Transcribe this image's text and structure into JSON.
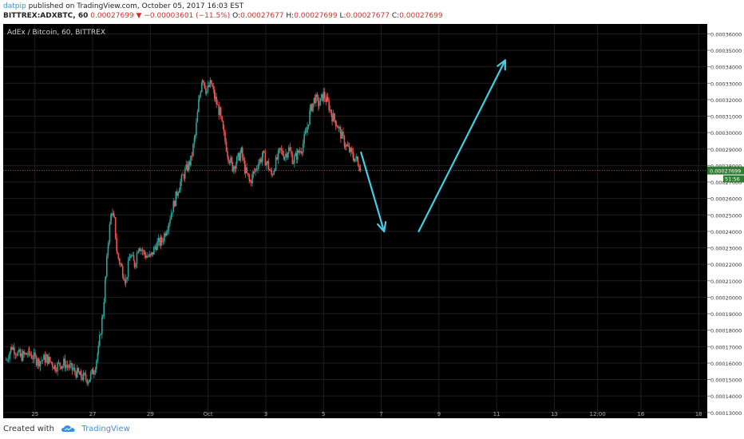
{
  "header": {
    "author": "datpip",
    "published": "published on TradingView.com, October 05, 2017 16:03 EST"
  },
  "quote": {
    "symbol": "BITTREX:ADXBTC, 60",
    "last": "0.00027699",
    "arrow": "▼",
    "change": "−0.00003601 (−11.5%)",
    "o_label": "O:",
    "o_value": "0.00027677",
    "h_label": "H:",
    "h_value": "0.00027699",
    "l_label": "L:",
    "l_value": "0.00027677",
    "c_label": "C:",
    "c_value": "0.00027699"
  },
  "footer": {
    "created_with": "Created with",
    "brand": "TradingView"
  },
  "colors": {
    "background": "#000000",
    "grid": "#1f1f1f",
    "up": "#26a69a",
    "down": "#ef5350",
    "arrow": "#3fd0e6",
    "price_line": "#26a69a"
  },
  "chart_data": {
    "type": "candlestick",
    "title": "AdEx / Bitcoin, 60, BITTREX",
    "y_ticks": [
      "0.00036000",
      "0.00035000",
      "0.00034000",
      "0.00033000",
      "0.00032000",
      "0.00031000",
      "0.00030000",
      "0.00029000",
      "0.00028000",
      "0.00027000",
      "0.00026000",
      "0.00025000",
      "0.00024000",
      "0.00023000",
      "0.00022000",
      "0.00021000",
      "0.00020000",
      "0.00019000",
      "0.00018000",
      "0.00017000",
      "0.00016000",
      "0.00015000",
      "0.00014000",
      "0.00013000"
    ],
    "y_tick_values": [
      0.00036,
      0.00035,
      0.00034,
      0.00033,
      0.00032,
      0.00031,
      0.0003,
      0.00029,
      0.00028,
      0.00027,
      0.00026,
      0.00025,
      0.00024,
      0.00023,
      0.00022,
      0.00021,
      0.0002,
      0.00019,
      0.00018,
      0.00017,
      0.00016,
      0.00015,
      0.00014,
      0.00013
    ],
    "ylim": [
      0.0001265,
      0.000366
    ],
    "x_ticks": [
      "25",
      "27",
      "29",
      "Oct",
      "3",
      "5",
      "7",
      "9",
      "11",
      "13",
      "12:00",
      "16",
      "18"
    ],
    "x_tick_days": [
      -6,
      -4,
      -2,
      0,
      2,
      4,
      6,
      8,
      10,
      12,
      13.5,
      15,
      17
    ],
    "xlim_days": [
      -7.1,
      17.3
    ],
    "last_price_label": "0.00027699",
    "last_price": 0.00027699,
    "countdown_label": "51:56",
    "price_path": [
      [
        -7.0,
        0.000162
      ],
      [
        -6.8,
        0.00017
      ],
      [
        -6.5,
        0.000164
      ],
      [
        -6.2,
        0.000166
      ],
      [
        -5.9,
        0.000161
      ],
      [
        -5.6,
        0.000163
      ],
      [
        -5.3,
        0.000158
      ],
      [
        -5.0,
        0.00016
      ],
      [
        -4.7,
        0.000156
      ],
      [
        -4.4,
        0.000152
      ],
      [
        -4.15,
        0.00015
      ],
      [
        -3.95,
        0.000156
      ],
      [
        -3.8,
        0.000168
      ],
      [
        -3.65,
        0.00019
      ],
      [
        -3.55,
        0.000212
      ],
      [
        -3.45,
        0.000236
      ],
      [
        -3.35,
        0.000252
      ],
      [
        -3.25,
        0.000246
      ],
      [
        -3.15,
        0.000226
      ],
      [
        -3.0,
        0.000218
      ],
      [
        -2.85,
        0.00021
      ],
      [
        -2.7,
        0.000226
      ],
      [
        -2.55,
        0.00022
      ],
      [
        -2.4,
        0.000232
      ],
      [
        -2.2,
        0.000226
      ],
      [
        -2.0,
        0.000224
      ],
      [
        -1.8,
        0.000232
      ],
      [
        -1.6,
        0.000234
      ],
      [
        -1.4,
        0.000244
      ],
      [
        -1.2,
        0.000256
      ],
      [
        -1.0,
        0.000268
      ],
      [
        -0.8,
        0.000276
      ],
      [
        -0.6,
        0.000283
      ],
      [
        -0.45,
        0.000298
      ],
      [
        -0.3,
        0.000322
      ],
      [
        -0.2,
        0.000334
      ],
      [
        -0.05,
        0.000325
      ],
      [
        0.1,
        0.00033
      ],
      [
        0.25,
        0.00032
      ],
      [
        0.4,
        0.000312
      ],
      [
        0.55,
        0.000298
      ],
      [
        0.7,
        0.000286
      ],
      [
        0.85,
        0.000279
      ],
      [
        1.0,
        0.000283
      ],
      [
        1.15,
        0.000288
      ],
      [
        1.3,
        0.000276
      ],
      [
        1.45,
        0.00027
      ],
      [
        1.6,
        0.000276
      ],
      [
        1.75,
        0.000282
      ],
      [
        1.9,
        0.000286
      ],
      [
        2.05,
        0.000281
      ],
      [
        2.2,
        0.000274
      ],
      [
        2.35,
        0.000282
      ],
      [
        2.5,
        0.000289
      ],
      [
        2.65,
        0.000286
      ],
      [
        2.8,
        0.00029
      ],
      [
        2.95,
        0.000283
      ],
      [
        3.1,
        0.000287
      ],
      [
        3.25,
        0.000291
      ],
      [
        3.4,
        0.0003
      ],
      [
        3.55,
        0.000314
      ],
      [
        3.7,
        0.000321
      ],
      [
        3.85,
        0.000317
      ],
      [
        4.0,
        0.000323
      ],
      [
        4.15,
        0.000318
      ],
      [
        4.3,
        0.00031
      ],
      [
        4.45,
        0.000306
      ],
      [
        4.6,
        0.000299
      ],
      [
        4.75,
        0.000293
      ],
      [
        4.9,
        0.000289
      ],
      [
        5.05,
        0.000285
      ],
      [
        5.2,
        0.000282
      ],
      [
        5.3,
        0.000277
      ]
    ],
    "annotations": [
      {
        "type": "arrow",
        "from": [
          5.3,
          0.000288
        ],
        "to": [
          6.1,
          0.00024
        ]
      },
      {
        "type": "arrow",
        "from": [
          7.3,
          0.00024
        ],
        "to": [
          10.3,
          0.000344
        ]
      }
    ]
  }
}
